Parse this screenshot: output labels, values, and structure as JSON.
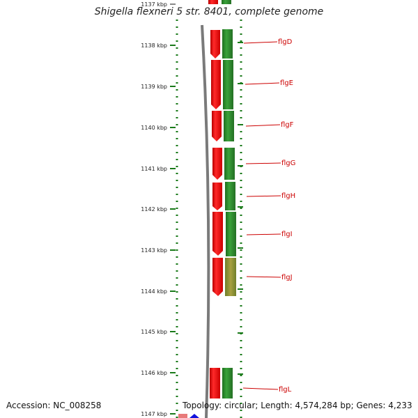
{
  "header": {
    "title": "Shigella flexneri 5 str. 8401, complete genome"
  },
  "footer": {
    "accession": "Accession: NC_008258",
    "summary": "Topology: circular; Length: 4,574,284 bp; Genes: 4,233"
  },
  "ruler": {
    "ticks": [
      "1137 kbp",
      "1138 kbp",
      "1139 kbp",
      "1140 kbp",
      "1141 kbp",
      "1142 kbp",
      "1143 kbp",
      "1144 kbp",
      "1145 kbp",
      "1146 kbp",
      "1147 kbp"
    ]
  },
  "genes": [
    {
      "label": "flgD"
    },
    {
      "label": "flgE"
    },
    {
      "label": "flgF"
    },
    {
      "label": "flgG"
    },
    {
      "label": "flgH"
    },
    {
      "label": "flgI"
    },
    {
      "label": "flgJ"
    },
    {
      "label": "flgL"
    }
  ],
  "colors": {
    "gene_arrow": "#ee1111",
    "cds_block": "#2b8a2b",
    "backbone": "#7a7a7a",
    "tick_green": "#1a7a1a",
    "label_red": "#cc0000"
  }
}
